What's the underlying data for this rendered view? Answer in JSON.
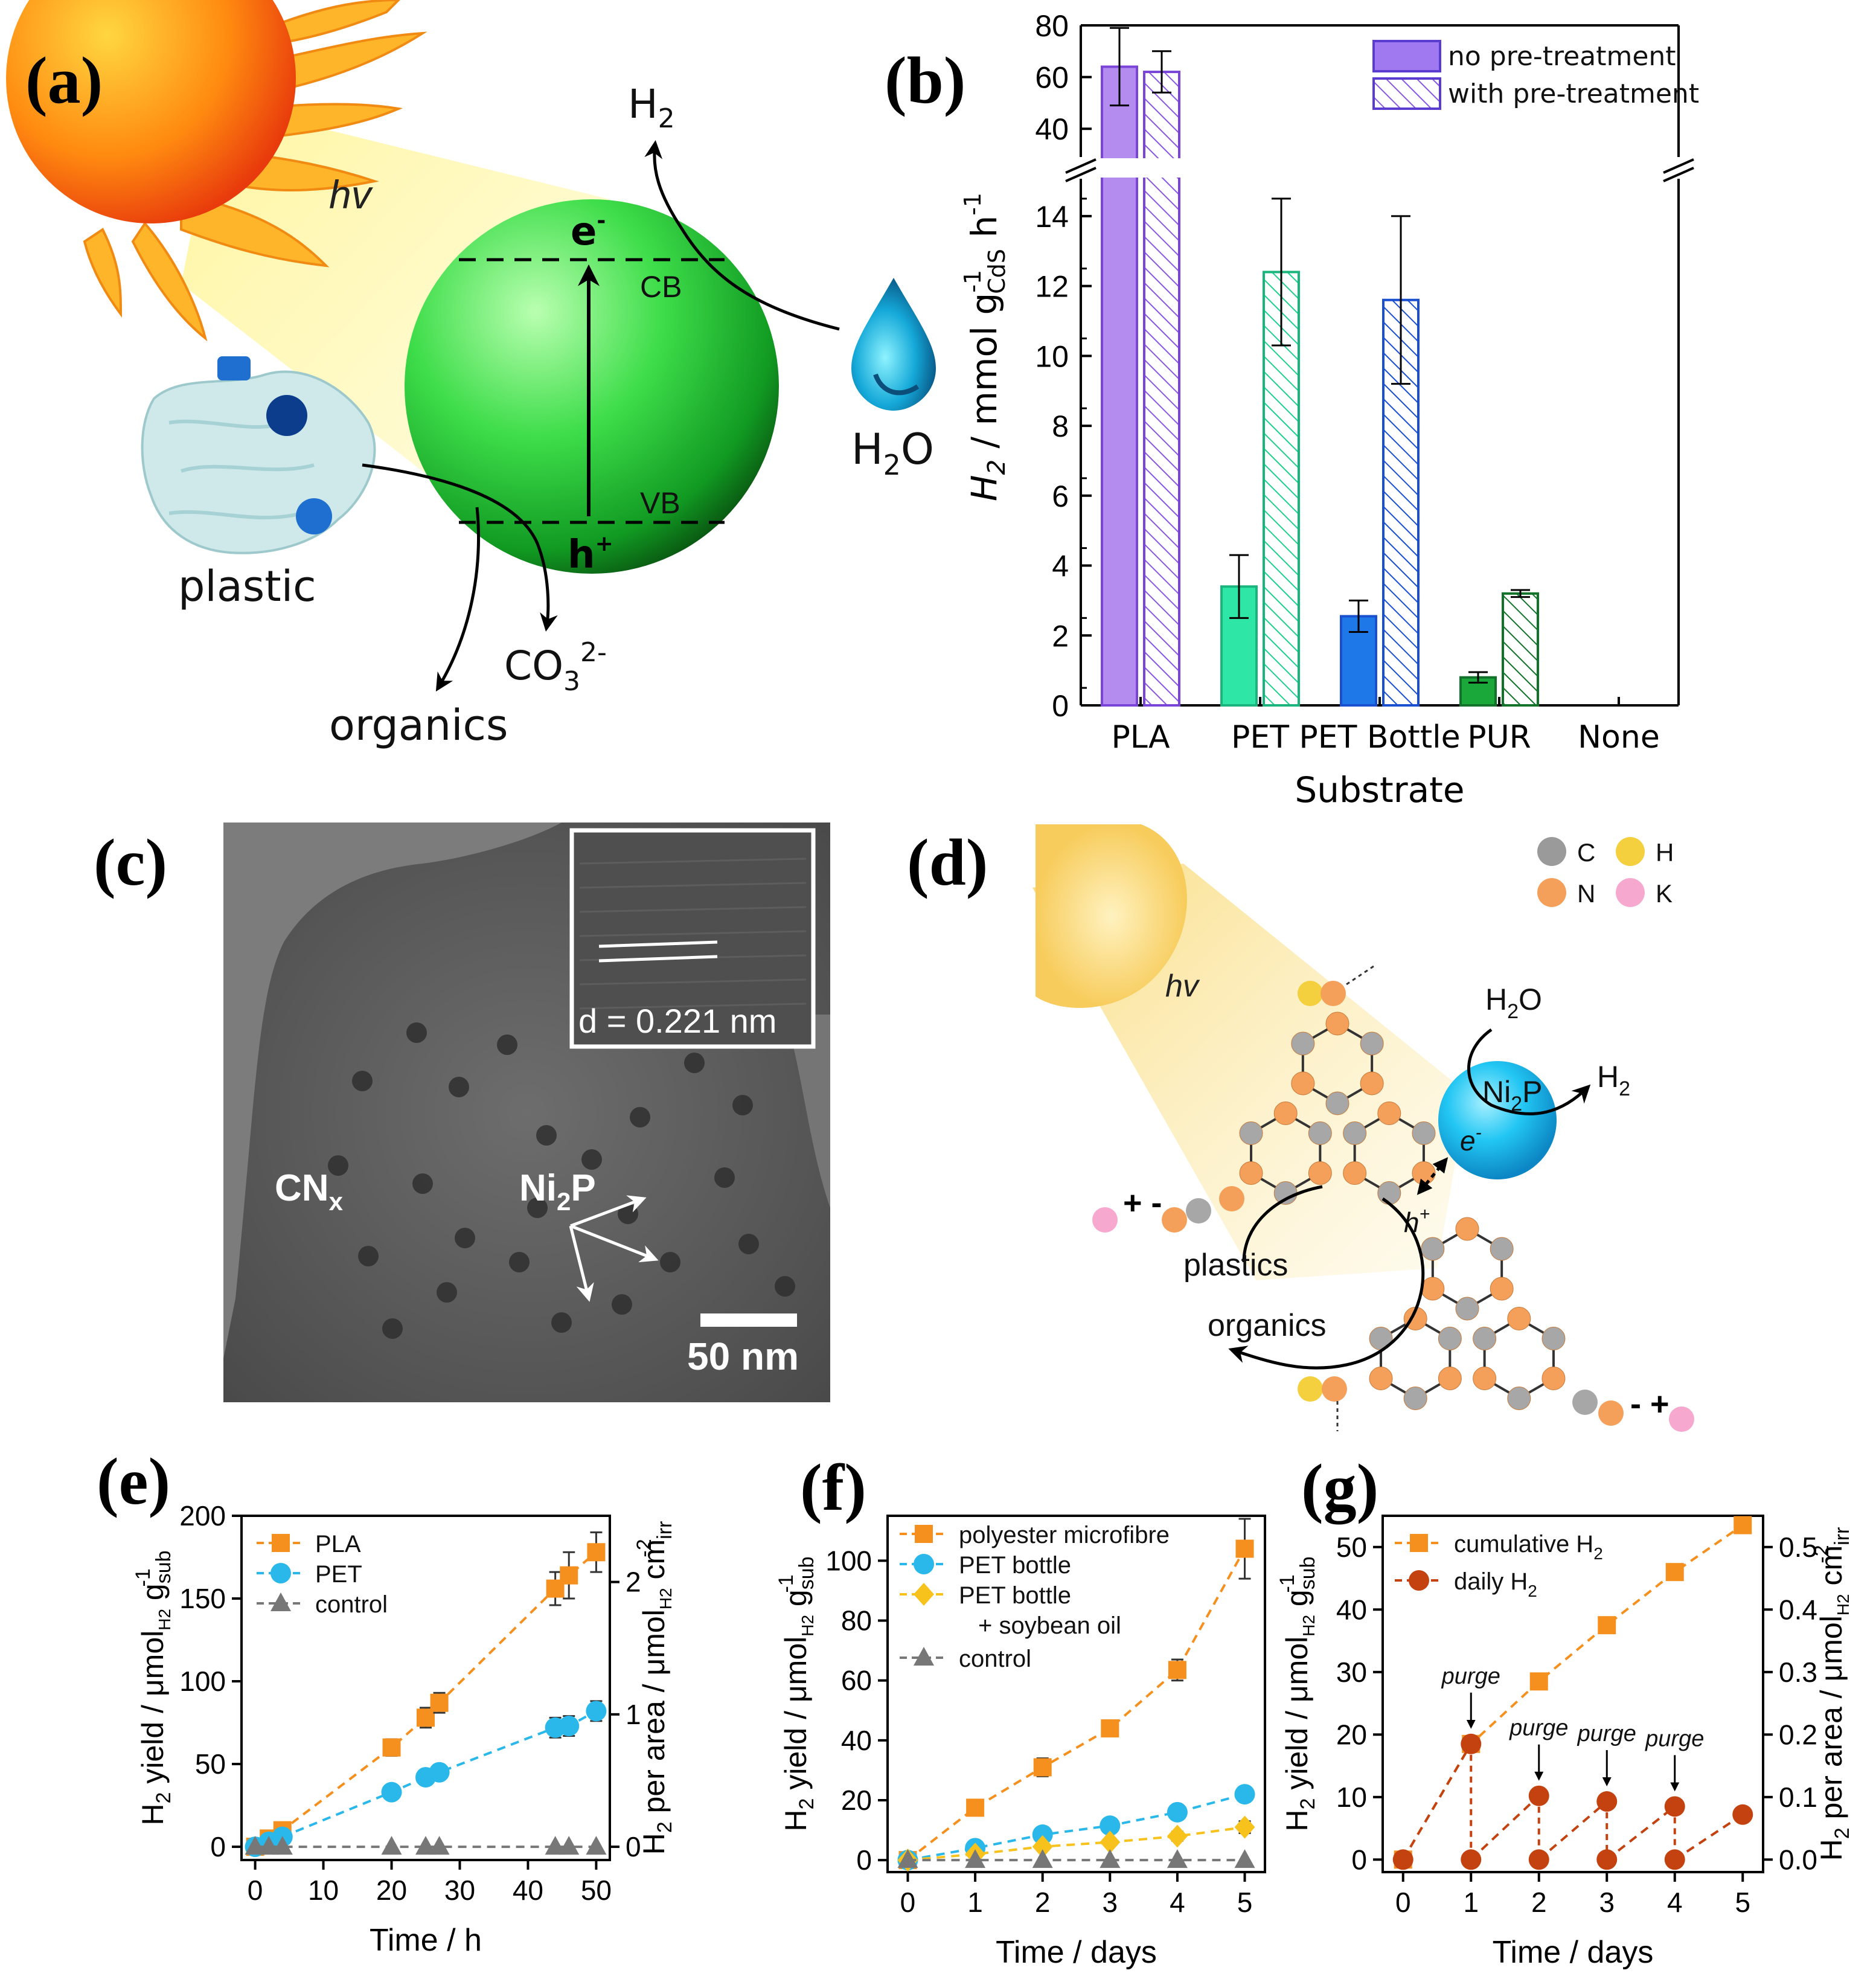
{
  "panels": {
    "a": {
      "label": "(a)",
      "hv": "hv",
      "electron": "e",
      "electron_sup": "-",
      "cb": "CB",
      "vb": "VB",
      "hole": "h",
      "hole_sup": "+",
      "h2_main": "H",
      "h2_sub": "2",
      "h2o_main": "H",
      "h2o_sub": "2",
      "h2o_tail": "O",
      "plastic": "plastic",
      "organics": "organics",
      "co3_main": "CO",
      "co3_sub": "3",
      "co3_sup": "2-"
    },
    "c": {
      "label": "(c)",
      "inset_text": "d = 0.221 nm",
      "cnx_main": "CN",
      "cnx_sub": "x",
      "ni2p_a": "Ni",
      "ni2p_sub": "2",
      "ni2p_b": "P",
      "scale_bar": "50 nm"
    },
    "d": {
      "label": "(d)",
      "legend": [
        {
          "name": "C",
          "color": "#9a9a9a"
        },
        {
          "name": "H",
          "color": "#f4d03f"
        },
        {
          "name": "N",
          "color": "#f5a05a"
        },
        {
          "name": "K",
          "color": "#f7a8cf"
        }
      ],
      "hv": "hv",
      "h2o_main": "H",
      "h2o_sub": "2",
      "h2o_tail": "O",
      "ni2p_a": "Ni",
      "ni2p_sub": "2",
      "ni2p_b": "P",
      "h2_main": "H",
      "h2_sub": "2",
      "electron": "e",
      "electron_sup": "-",
      "hole": "h",
      "hole_sup": "+",
      "plastics": "plastics",
      "organics": "organics",
      "charge_left": "+ -",
      "charge_right": "- +"
    }
  },
  "chart_data": [
    {
      "panel": "(b)",
      "type": "bar",
      "categories": [
        "PLA",
        "PET",
        "PET Bottle",
        "PUR",
        "None"
      ],
      "xlabel": "Substrate",
      "ylabel_main": "H",
      "ylabel_sub": "2",
      "ylabel_rest": " / mmol g",
      "ylabel_sup1": "-1",
      "ylabel_sub2": "CdS",
      "ylabel_h": " h",
      "ylabel_sup2": "-1",
      "y_lower_range": [
        0,
        15
      ],
      "y_lower_ticks": [
        "0",
        "2",
        "4",
        "6",
        "8",
        "10",
        "12",
        "14"
      ],
      "y_upper_range": [
        30,
        80
      ],
      "y_upper_ticks": [
        "40",
        "60",
        "80"
      ],
      "colors": [
        "#b48cf0",
        "#2ee6a6",
        "#1e78e8",
        "#1aa83a"
      ],
      "edge_colors": [
        "#7a44d8",
        "#1ab57c",
        "#1a4fd0",
        "#11732a"
      ],
      "series": [
        {
          "name": "no pre-treatment",
          "values": [
            64,
            3.4,
            2.55,
            0.8,
            0
          ],
          "errors": [
            15,
            0.9,
            0.45,
            0.15,
            0
          ]
        },
        {
          "name": "with pre-treatment",
          "values": [
            62,
            12.4,
            11.6,
            3.2,
            0
          ],
          "errors": [
            8,
            2.1,
            2.4,
            0.1,
            0
          ]
        }
      ]
    },
    {
      "panel": "(e)",
      "type": "line",
      "xlabel": "Time / h",
      "ylabel": "H2 yield / µmolH2 gsub-1",
      "ylabel_parts": {
        "main": "H",
        "sub": "2",
        "mid": " yield / μmol",
        "sub2": "H2",
        "mid2": " g",
        "sub3": "sub",
        "sup": "-1"
      },
      "y2label_parts": {
        "main": "H",
        "sub": "2",
        "mid": " per area / μmol",
        "sub2": "H2",
        "mid2": " cm",
        "sub3": "irr",
        "sup": "-2"
      },
      "xlim": [
        -2,
        52
      ],
      "ylim": [
        -8,
        200
      ],
      "y2lim": [
        -0.1,
        2.5
      ],
      "x_ticks": [
        "0",
        "10",
        "20",
        "30",
        "40",
        "50"
      ],
      "y_ticks": [
        "0",
        "50",
        "100",
        "150",
        "200"
      ],
      "y2_ticks": [
        "0",
        "1",
        "2"
      ],
      "series": [
        {
          "name": "PLA",
          "color": "#f5901e",
          "marker": "square",
          "x": [
            0,
            2,
            4,
            20,
            25,
            27,
            44,
            46,
            50
          ],
          "y": [
            0,
            5,
            10,
            60,
            78,
            87,
            156,
            164,
            178
          ],
          "err": [
            1,
            2,
            3,
            5,
            6,
            6,
            10,
            14,
            12
          ]
        },
        {
          "name": "PET",
          "color": "#2ab8ea",
          "marker": "circle",
          "x": [
            0,
            2,
            4,
            20,
            25,
            27,
            44,
            46,
            50
          ],
          "y": [
            0,
            3,
            6,
            33,
            42,
            45,
            72,
            73,
            82
          ],
          "err": [
            1,
            2,
            2,
            3,
            3,
            3,
            6,
            6,
            6
          ]
        },
        {
          "name": "control",
          "color": "#777777",
          "marker": "triangle",
          "x": [
            0,
            2,
            4,
            20,
            25,
            27,
            44,
            46,
            50
          ],
          "y": [
            0,
            0,
            0,
            0,
            0,
            0,
            0,
            0,
            0
          ],
          "err": [
            0,
            0,
            0,
            0,
            0,
            0,
            0,
            0,
            0
          ]
        }
      ]
    },
    {
      "panel": "(f)",
      "type": "line",
      "xlabel": "Time / days",
      "ylabel_parts": {
        "main": "H",
        "sub": "2",
        "mid": " yield / μmol",
        "sub2": "H2",
        "mid2": " g",
        "sub3": "sub",
        "sup": "-1"
      },
      "xlim": [
        -0.3,
        5.3
      ],
      "ylim": [
        -4,
        115
      ],
      "x_ticks": [
        "0",
        "1",
        "2",
        "3",
        "4",
        "5"
      ],
      "y_ticks": [
        "0",
        "20",
        "40",
        "60",
        "80",
        "100"
      ],
      "series": [
        {
          "name": "polyester microfibre",
          "color": "#f5901e",
          "marker": "square",
          "x": [
            0,
            1,
            2,
            3,
            4,
            5
          ],
          "y": [
            0,
            17.5,
            31,
            44,
            63.5,
            104
          ],
          "err": [
            0.5,
            1.5,
            3,
            2.5,
            3.5,
            10
          ]
        },
        {
          "name": "PET bottle",
          "color": "#2ab8ea",
          "marker": "circle",
          "x": [
            0,
            1,
            2,
            3,
            4,
            5
          ],
          "y": [
            0,
            4,
            8.5,
            11.5,
            16,
            22
          ],
          "err": [
            0.5,
            1,
            1.5,
            1.5,
            1.5,
            2
          ]
        },
        {
          "name": "PET bottle",
          "name2": "+ soybean oil",
          "color": "#f8c21c",
          "marker": "diamond",
          "x": [
            0,
            1,
            2,
            3,
            4,
            5
          ],
          "y": [
            0,
            2,
            4.5,
            6,
            8,
            11
          ],
          "err": [
            0.5,
            1,
            1,
            1,
            1.5,
            2
          ]
        },
        {
          "name": "control",
          "color": "#777777",
          "marker": "triangle",
          "x": [
            0,
            1,
            2,
            3,
            4,
            5
          ],
          "y": [
            0,
            0,
            0,
            0,
            0,
            0
          ],
          "err": [
            0,
            0,
            0,
            0,
            0,
            0
          ]
        }
      ]
    },
    {
      "panel": "(g)",
      "type": "line",
      "xlabel": "Time / days",
      "ylabel_parts": {
        "main": "H",
        "sub": "2",
        "mid": " yield / μmol",
        "sub2": "H2",
        "mid2": " g",
        "sub3": "sub",
        "sup": "-1"
      },
      "y2label_parts": {
        "main": "H",
        "sub": "2",
        "mid": " per area / μmol",
        "sub2": "H2",
        "mid2": " cm",
        "sub3": "irr",
        "sup": "-2"
      },
      "xlim": [
        -0.3,
        5.3
      ],
      "ylim": [
        -2,
        55
      ],
      "y2lim": [
        -0.02,
        0.55
      ],
      "x_ticks": [
        "0",
        "1",
        "2",
        "3",
        "4",
        "5"
      ],
      "y_ticks": [
        "0",
        "10",
        "20",
        "30",
        "40",
        "50"
      ],
      "y2_ticks": [
        "0.0",
        "0.1",
        "0.2",
        "0.3",
        "0.4",
        "0.5"
      ],
      "purge_label": "purge",
      "series": [
        {
          "name": "cumulative H",
          "name_sub": "2",
          "color": "#f5901e",
          "marker": "square",
          "x": [
            0,
            1,
            2,
            3,
            4,
            5
          ],
          "y": [
            0,
            18.5,
            28.5,
            37.5,
            46,
            53.5
          ]
        },
        {
          "name": "daily H",
          "name_sub": "2",
          "color": "#c4420f",
          "marker": "circle",
          "segments": [
            {
              "x": [
                0,
                1
              ],
              "y": [
                0,
                18.5
              ]
            },
            {
              "x": [
                1,
                2
              ],
              "y": [
                0,
                10.2
              ]
            },
            {
              "x": [
                2,
                3
              ],
              "y": [
                0,
                9.3
              ]
            },
            {
              "x": [
                3,
                4
              ],
              "y": [
                0,
                8.5
              ]
            },
            {
              "x": [
                4,
                5
              ],
              "y": [
                0,
                7.2
              ]
            }
          ]
        }
      ],
      "purges": [
        1,
        2,
        3,
        4
      ]
    }
  ]
}
